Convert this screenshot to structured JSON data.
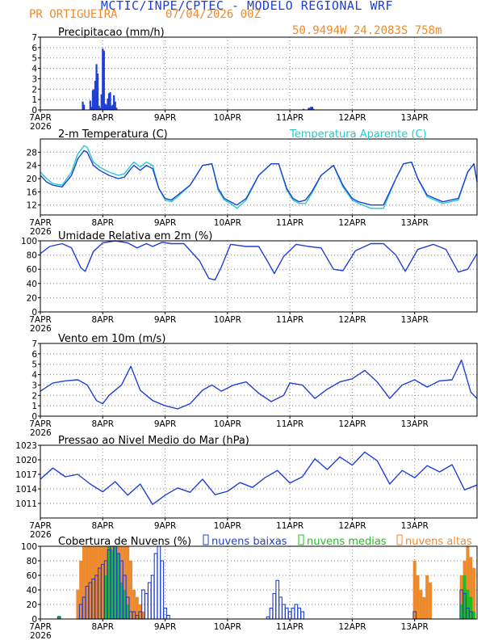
{
  "header": {
    "title": "MCTIC/INPE/CPTEC - MODELO REGIONAL WRF",
    "location": "PR ORTIGUEIRA",
    "date": "07/04/2026 00Z",
    "coords": "50.9494W 24.2083S 758m"
  },
  "colors": {
    "blue": "#1f3fd6",
    "cyan": "#22cccc",
    "green": "#22bb22",
    "orange": "#ee8a2e",
    "grid": "#888888"
  },
  "chart_data": [
    {
      "id": "precip",
      "type": "bar",
      "title": "Precipitacao (mm/h)",
      "xlabel": "",
      "ylabel": "",
      "ylim": [
        0,
        7
      ],
      "yticks": [
        0,
        1,
        2,
        3,
        4,
        5,
        6,
        7
      ],
      "xticks": [
        "7APR",
        "8APR",
        "9APR",
        "10APR",
        "11APR",
        "12APR",
        "13APR"
      ],
      "xtick_year": "2026",
      "grid": true,
      "x": [
        0.68,
        0.7,
        0.8,
        0.82,
        0.84,
        0.86,
        0.88,
        0.9,
        0.92,
        0.94,
        0.96,
        0.98,
        1.0,
        1.02,
        1.04,
        1.06,
        1.08,
        1.1,
        1.12,
        1.14,
        1.16,
        1.18,
        1.2,
        1.22,
        4.22,
        4.3,
        4.32,
        4.34,
        4.36,
        4.38
      ],
      "values": [
        0.8,
        0.5,
        0.9,
        0.3,
        1.9,
        2.0,
        2.8,
        4.4,
        3.5,
        0.4,
        0.2,
        1.5,
        5.9,
        5.7,
        0.6,
        0.5,
        1.1,
        1.6,
        1.7,
        0.4,
        0.5,
        1.4,
        0.8,
        0.2,
        0.1,
        0.2,
        0.2,
        0.3,
        0.3,
        0.1
      ]
    },
    {
      "id": "temp",
      "type": "line",
      "title": "2-m Temperatura (C)",
      "legend": "Temperatura Aparente (C)",
      "ylim": [
        9,
        32
      ],
      "yticks": [
        12,
        16,
        20,
        24,
        28
      ],
      "xticks": [
        "7APR",
        "8APR",
        "9APR",
        "10APR",
        "11APR",
        "12APR",
        "13APR"
      ],
      "xtick_year": "2026",
      "grid": true,
      "x": [
        0,
        0.1,
        0.2,
        0.35,
        0.5,
        0.6,
        0.7,
        0.75,
        0.85,
        0.95,
        1.1,
        1.25,
        1.35,
        1.45,
        1.5,
        1.6,
        1.7,
        1.8,
        1.9,
        2.0,
        2.1,
        2.2,
        2.4,
        2.6,
        2.75,
        2.85,
        2.95,
        3.05,
        3.15,
        3.3,
        3.5,
        3.7,
        3.82,
        3.95,
        4.05,
        4.15,
        4.25,
        4.35,
        4.5,
        4.7,
        4.85,
        5.0,
        5.1,
        5.3,
        5.5,
        5.7,
        5.82,
        5.95,
        6.05,
        6.2,
        6.45,
        6.7,
        6.85,
        6.95,
        7.0
      ],
      "series": [
        {
          "values": [
            21,
            19,
            18,
            17.5,
            21,
            26,
            28.5,
            28,
            24,
            22.5,
            21,
            20,
            20.5,
            23,
            24,
            22.5,
            24,
            23,
            17,
            14,
            13.5,
            15,
            18,
            24,
            24.5,
            17,
            14,
            13,
            12,
            14,
            21,
            24.5,
            24.5,
            17,
            14,
            13,
            13.5,
            16,
            21,
            24,
            18,
            14,
            13,
            12,
            12,
            20,
            24.5,
            25,
            20,
            15,
            13,
            14,
            22,
            24.5,
            19
          ]
        },
        {
          "values": [
            22,
            20,
            18.5,
            18,
            22,
            27.5,
            30,
            29.5,
            25,
            23.5,
            22,
            21,
            21.5,
            24,
            25,
            23.5,
            25,
            24,
            17,
            13.5,
            13,
            14.5,
            18,
            24,
            24.5,
            16.5,
            13.5,
            12.5,
            11,
            13.5,
            21,
            24.5,
            24.5,
            16.5,
            13.5,
            12.5,
            12.5,
            15.5,
            21,
            24,
            17.5,
            13.5,
            12.5,
            11,
            11,
            20,
            24.5,
            25,
            20,
            14.5,
            12.5,
            13.5,
            22,
            24.5,
            19
          ]
        }
      ]
    },
    {
      "id": "rh",
      "type": "line",
      "title": "Umidade Relativa em 2m (%)",
      "ylim": [
        0,
        100
      ],
      "yticks": [
        0,
        20,
        40,
        60,
        80,
        100
      ],
      "xticks": [
        "7APR",
        "8APR",
        "9APR",
        "10APR",
        "11APR",
        "12APR",
        "13APR"
      ],
      "xtick_year": "2026",
      "grid": true,
      "x": [
        0,
        0.15,
        0.35,
        0.5,
        0.65,
        0.72,
        0.85,
        1.0,
        1.2,
        1.4,
        1.55,
        1.7,
        1.8,
        1.95,
        2.1,
        2.3,
        2.55,
        2.7,
        2.8,
        2.9,
        3.05,
        3.3,
        3.5,
        3.65,
        3.75,
        3.9,
        4.1,
        4.3,
        4.5,
        4.7,
        4.85,
        5.05,
        5.3,
        5.5,
        5.7,
        5.85,
        6.05,
        6.3,
        6.5,
        6.7,
        6.85,
        7.0
      ],
      "series": [
        {
          "values": [
            82,
            92,
            96,
            90,
            62,
            57,
            85,
            97,
            100,
            97,
            90,
            96,
            92,
            98,
            96,
            96,
            72,
            47,
            45,
            63,
            95,
            92,
            92,
            70,
            54,
            78,
            95,
            92,
            90,
            60,
            58,
            86,
            96,
            96,
            80,
            57,
            88,
            95,
            88,
            56,
            60,
            82
          ]
        }
      ]
    },
    {
      "id": "wind",
      "type": "line",
      "title": "Vento em 10m (m/s)",
      "ylim": [
        0,
        7
      ],
      "yticks": [
        0,
        1,
        2,
        3,
        4,
        5,
        6,
        7
      ],
      "xticks": [
        "7APR",
        "8APR",
        "9APR",
        "10APR",
        "11APR",
        "12APR",
        "13APR"
      ],
      "xtick_year": "2026",
      "grid": true,
      "x": [
        0,
        0.2,
        0.4,
        0.6,
        0.75,
        0.9,
        1.0,
        1.1,
        1.3,
        1.45,
        1.6,
        1.8,
        2.0,
        2.2,
        2.4,
        2.6,
        2.75,
        2.9,
        3.1,
        3.3,
        3.5,
        3.7,
        3.9,
        4.0,
        4.2,
        4.4,
        4.6,
        4.8,
        5.0,
        5.2,
        5.4,
        5.6,
        5.8,
        6.0,
        6.2,
        6.4,
        6.6,
        6.75,
        6.9,
        7.0
      ],
      "series": [
        {
          "values": [
            2.4,
            3.2,
            3.4,
            3.5,
            3.0,
            1.5,
            1.2,
            2.0,
            3.0,
            4.8,
            2.5,
            1.5,
            1.0,
            0.7,
            1.2,
            2.5,
            3.0,
            2.4,
            3.0,
            3.3,
            2.2,
            1.4,
            2.0,
            3.2,
            3.0,
            1.7,
            2.6,
            3.3,
            3.6,
            4.4,
            3.3,
            1.7,
            3.0,
            3.5,
            2.8,
            3.4,
            3.5,
            5.4,
            2.3,
            1.7
          ]
        }
      ]
    },
    {
      "id": "pressure",
      "type": "line",
      "title": "Pressao ao Nivel Medio do Mar (hPa)",
      "ylim": [
        1008,
        1023
      ],
      "yticks": [
        1011,
        1014,
        1017,
        1020,
        1023
      ],
      "xticks": [
        "7APR",
        "8APR",
        "9APR",
        "10APR",
        "11APR",
        "12APR",
        "13APR"
      ],
      "xtick_year": "2026",
      "grid": true,
      "x": [
        0,
        0.2,
        0.4,
        0.6,
        0.8,
        1.0,
        1.2,
        1.4,
        1.6,
        1.8,
        2.0,
        2.2,
        2.4,
        2.6,
        2.8,
        3.0,
        3.2,
        3.4,
        3.6,
        3.8,
        4.0,
        4.2,
        4.4,
        4.6,
        4.8,
        5.0,
        5.2,
        5.4,
        5.6,
        5.8,
        6.0,
        6.2,
        6.4,
        6.6,
        6.8,
        7.0
      ],
      "series": [
        {
          "values": [
            1016,
            1018.3,
            1016.5,
            1017,
            1015,
            1013.4,
            1015.5,
            1012.7,
            1015,
            1010.8,
            1012.7,
            1014.2,
            1013.3,
            1016,
            1012.8,
            1013.5,
            1015.3,
            1014.3,
            1016.3,
            1017.8,
            1015.2,
            1016.5,
            1020.2,
            1018,
            1020.6,
            1018.9,
            1021.6,
            1019.8,
            1015,
            1017.8,
            1016.3,
            1018.8,
            1017.5,
            1019,
            1013.8,
            1014.8
          ]
        }
      ]
    },
    {
      "id": "clouds",
      "type": "bar",
      "title": "Cobertura de Nuvens (%)",
      "legend": [
        "nuvens baixas",
        "nuvens medias",
        "nuvens altas"
      ],
      "ylim": [
        0,
        100
      ],
      "yticks": [
        0,
        20,
        40,
        60,
        80,
        100
      ],
      "xticks": [
        "7APR",
        "8APR",
        "9APR",
        "10APR",
        "11APR",
        "12APR",
        "13APR"
      ],
      "xtick_year": "2026",
      "grid": true,
      "x": [
        0.3,
        0.6,
        0.65,
        0.7,
        0.75,
        0.8,
        0.85,
        0.9,
        0.95,
        1.0,
        1.05,
        1.1,
        1.15,
        1.2,
        1.25,
        1.3,
        1.35,
        1.4,
        1.45,
        1.5,
        1.55,
        1.6,
        1.65,
        1.7,
        1.75,
        1.8,
        1.85,
        1.9,
        1.95,
        2.0,
        2.05,
        2.1,
        2.15,
        2.2,
        2.25,
        2.3,
        2.35,
        2.4,
        3.65,
        3.7,
        3.75,
        3.8,
        3.85,
        3.9,
        3.95,
        4.0,
        4.05,
        4.1,
        4.15,
        4.2,
        6.0,
        6.05,
        6.1,
        6.15,
        6.2,
        6.25,
        6.75,
        6.8,
        6.85,
        6.9,
        6.95
      ],
      "series": [
        {
          "name": "nuvens baixas",
          "values": [
            3,
            0,
            20,
            30,
            45,
            50,
            55,
            60,
            70,
            75,
            80,
            95,
            100,
            100,
            90,
            80,
            60,
            30,
            10,
            10,
            5,
            10,
            40,
            35,
            50,
            60,
            90,
            100,
            80,
            15,
            5,
            0,
            0,
            0,
            0,
            0,
            0,
            0,
            3,
            15,
            35,
            53,
            30,
            20,
            15,
            10,
            15,
            20,
            15,
            10,
            10,
            0,
            0,
            0,
            0,
            0,
            40,
            35,
            15,
            10,
            0
          ]
        },
        {
          "name": "nuvens medias",
          "values": [
            4,
            0,
            0,
            0,
            0,
            0,
            0,
            0,
            0,
            0,
            60,
            100,
            95,
            100,
            90,
            50,
            40,
            20,
            0,
            0,
            0,
            0,
            0,
            0,
            0,
            0,
            0,
            0,
            0,
            0,
            0,
            0,
            0,
            0,
            0,
            0,
            0,
            0,
            0,
            0,
            0,
            0,
            0,
            0,
            0,
            0,
            0,
            0,
            0,
            0,
            0,
            0,
            0,
            0,
            0,
            0,
            20,
            60,
            40,
            30,
            10
          ]
        },
        {
          "name": "nuvens altas",
          "values": [
            0,
            40,
            80,
            100,
            100,
            100,
            100,
            100,
            100,
            100,
            100,
            100,
            100,
            100,
            100,
            100,
            100,
            100,
            80,
            40,
            30,
            20,
            10,
            0,
            0,
            0,
            0,
            0,
            0,
            0,
            0,
            0,
            0,
            0,
            0,
            0,
            0,
            0,
            0,
            0,
            0,
            0,
            0,
            0,
            0,
            0,
            0,
            0,
            0,
            0,
            80,
            60,
            40,
            30,
            60,
            50,
            60,
            80,
            100,
            85,
            70
          ]
        }
      ]
    }
  ]
}
